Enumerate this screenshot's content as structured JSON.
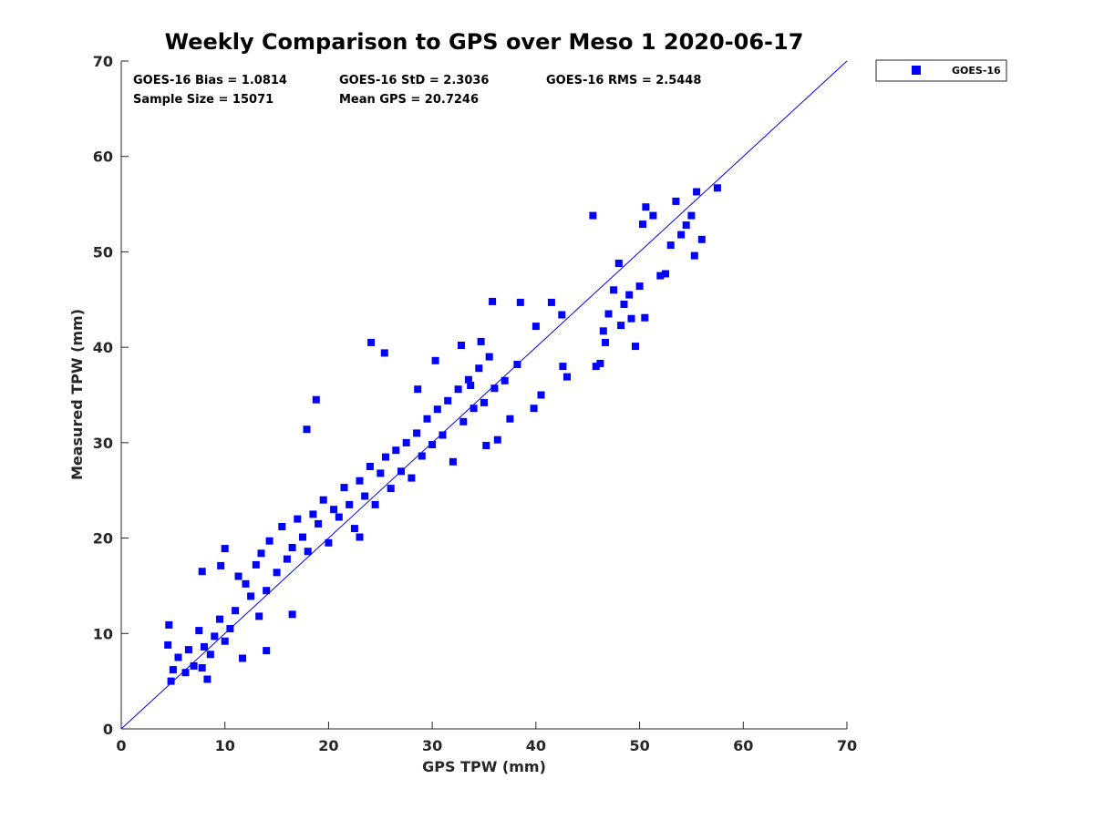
{
  "chart_data": {
    "type": "scatter",
    "title": "Weekly Comparison to GPS over Meso 1 2020-06-17",
    "xlabel": "GPS TPW (mm)",
    "ylabel": "Measured TPW (mm)",
    "xlim": [
      0,
      70
    ],
    "ylim": [
      0,
      70
    ],
    "xticks": [
      "0",
      "10",
      "20",
      "30",
      "40",
      "50",
      "60",
      "70"
    ],
    "yticks": [
      "0",
      "10",
      "20",
      "30",
      "40",
      "50",
      "60",
      "70"
    ],
    "grid": false,
    "legend_position": "outside-top-right",
    "marker": "square",
    "color": "#0000ff",
    "reference_line": {
      "type": "one-to-one",
      "x": [
        0,
        70
      ],
      "y": [
        0,
        70
      ]
    },
    "stats": [
      "GOES-16 Bias = 1.0814",
      "GOES-16 StD = 2.3036",
      "GOES-16 RMS = 2.5448",
      "Sample Size = 15071",
      "Mean GPS = 20.7246"
    ],
    "series": [
      {
        "name": "GOES-16",
        "sample_size": 15071,
        "points": [
          [
            4.6,
            10.9
          ],
          [
            4.5,
            8.8
          ],
          [
            4.8,
            5.0
          ],
          [
            5.0,
            6.2
          ],
          [
            5.5,
            7.5
          ],
          [
            6.2,
            5.9
          ],
          [
            6.5,
            8.3
          ],
          [
            7.0,
            6.6
          ],
          [
            7.5,
            10.3
          ],
          [
            7.8,
            6.4
          ],
          [
            8.3,
            5.2
          ],
          [
            8.6,
            7.8
          ],
          [
            8.0,
            8.6
          ],
          [
            9.0,
            9.7
          ],
          [
            9.5,
            11.5
          ],
          [
            10.0,
            9.2
          ],
          [
            10.5,
            10.5
          ],
          [
            11.0,
            12.4
          ],
          [
            11.7,
            7.4
          ],
          [
            7.8,
            16.5
          ],
          [
            9.6,
            17.1
          ],
          [
            10.0,
            18.9
          ],
          [
            11.3,
            16.0
          ],
          [
            12.0,
            15.2
          ],
          [
            12.5,
            13.9
          ],
          [
            13.0,
            17.2
          ],
          [
            13.5,
            18.4
          ],
          [
            14.0,
            14.5
          ],
          [
            14.3,
            19.7
          ],
          [
            15.0,
            16.4
          ],
          [
            15.5,
            21.2
          ],
          [
            16.0,
            17.8
          ],
          [
            16.5,
            19.0
          ],
          [
            17.0,
            22.0
          ],
          [
            17.5,
            20.1
          ],
          [
            18.0,
            18.6
          ],
          [
            18.5,
            22.5
          ],
          [
            19.0,
            21.5
          ],
          [
            19.5,
            24.0
          ],
          [
            20.0,
            19.5
          ],
          [
            20.5,
            23.0
          ],
          [
            21.0,
            22.2
          ],
          [
            21.5,
            25.3
          ],
          [
            22.0,
            23.5
          ],
          [
            22.5,
            21.0
          ],
          [
            23.0,
            26.0
          ],
          [
            23.5,
            24.4
          ],
          [
            24.0,
            27.5
          ],
          [
            24.5,
            23.5
          ],
          [
            25.0,
            26.8
          ],
          [
            25.5,
            28.5
          ],
          [
            26.0,
            25.2
          ],
          [
            26.5,
            29.2
          ],
          [
            27.0,
            27.0
          ],
          [
            27.5,
            30.0
          ],
          [
            28.0,
            26.3
          ],
          [
            28.5,
            31.0
          ],
          [
            29.0,
            28.6
          ],
          [
            29.5,
            32.5
          ],
          [
            30.0,
            29.8
          ],
          [
            30.5,
            33.5
          ],
          [
            31.0,
            30.8
          ],
          [
            31.5,
            34.4
          ],
          [
            32.0,
            28.0
          ],
          [
            32.5,
            35.6
          ],
          [
            33.0,
            32.2
          ],
          [
            33.5,
            36.6
          ],
          [
            34.0,
            33.6
          ],
          [
            34.5,
            37.8
          ],
          [
            35.0,
            34.2
          ],
          [
            35.5,
            39.0
          ],
          [
            36.0,
            35.7
          ],
          [
            17.9,
            31.4
          ],
          [
            18.8,
            34.5
          ],
          [
            24.1,
            40.5
          ],
          [
            25.4,
            39.4
          ],
          [
            23.0,
            20.1
          ],
          [
            16.5,
            12.0
          ],
          [
            14.0,
            8.2
          ],
          [
            13.3,
            11.8
          ],
          [
            28.6,
            35.6
          ],
          [
            30.3,
            38.6
          ],
          [
            32.8,
            40.2
          ],
          [
            33.7,
            36.0
          ],
          [
            34.7,
            40.6
          ],
          [
            35.8,
            44.8
          ],
          [
            37.0,
            36.5
          ],
          [
            38.2,
            38.2
          ],
          [
            38.5,
            44.7
          ],
          [
            40.0,
            42.2
          ],
          [
            41.5,
            44.7
          ],
          [
            42.5,
            43.4
          ],
          [
            43.0,
            36.9
          ],
          [
            42.6,
            38.0
          ],
          [
            40.5,
            35.0
          ],
          [
            39.8,
            33.6
          ],
          [
            37.5,
            32.5
          ],
          [
            35.2,
            29.7
          ],
          [
            36.3,
            30.3
          ],
          [
            45.5,
            53.8
          ],
          [
            45.8,
            38.0
          ],
          [
            46.2,
            38.3
          ],
          [
            46.7,
            40.5
          ],
          [
            47.5,
            46.0
          ],
          [
            48.0,
            48.8
          ],
          [
            48.5,
            44.5
          ],
          [
            49.0,
            45.5
          ],
          [
            49.6,
            40.1
          ],
          [
            50.0,
            46.4
          ],
          [
            50.3,
            52.9
          ],
          [
            50.6,
            54.7
          ],
          [
            51.3,
            53.8
          ],
          [
            52.0,
            47.5
          ],
          [
            53.0,
            50.7
          ],
          [
            53.5,
            55.3
          ],
          [
            54.0,
            51.8
          ],
          [
            54.5,
            52.8
          ],
          [
            55.0,
            53.8
          ],
          [
            55.3,
            49.6
          ],
          [
            55.5,
            56.3
          ],
          [
            56.0,
            51.3
          ],
          [
            57.5,
            56.7
          ],
          [
            46.5,
            41.7
          ],
          [
            47.0,
            43.5
          ],
          [
            48.2,
            42.3
          ],
          [
            49.2,
            43.0
          ],
          [
            50.5,
            43.1
          ],
          [
            52.5,
            47.7
          ]
        ]
      }
    ]
  }
}
